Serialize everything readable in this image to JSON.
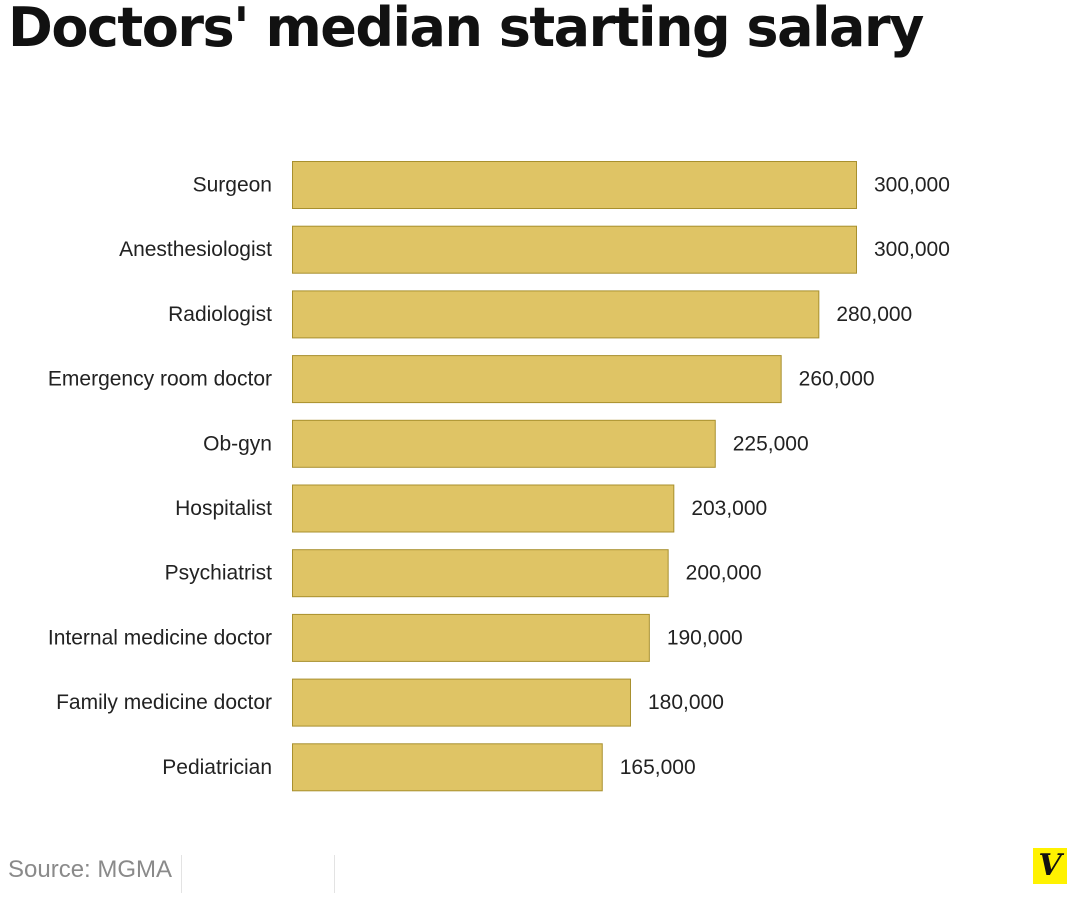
{
  "chart_data": {
    "type": "bar",
    "orientation": "horizontal",
    "title": "Doctors' median starting salary",
    "categories": [
      "Surgeon",
      "Anesthesiologist",
      "Radiologist",
      "Emergency room doctor",
      "Ob-gyn",
      "Hospitalist",
      "Psychiatrist",
      "Internal medicine doctor",
      "Family medicine doctor",
      "Pediatrician"
    ],
    "values": [
      300000,
      300000,
      280000,
      260000,
      225000,
      203000,
      200000,
      190000,
      180000,
      165000
    ],
    "value_labels": [
      "300,000",
      "300,000",
      "280,000",
      "260,000",
      "225,000",
      "203,000",
      "200,000",
      "190,000",
      "180,000",
      "165,000"
    ],
    "xlim": [
      0,
      300000
    ],
    "grid": false,
    "bar_color": "#dfc465",
    "bar_stroke": "#a8902e"
  },
  "source": "Source: MGMA",
  "logo": {
    "letter": "V",
    "background": "#fff200"
  }
}
